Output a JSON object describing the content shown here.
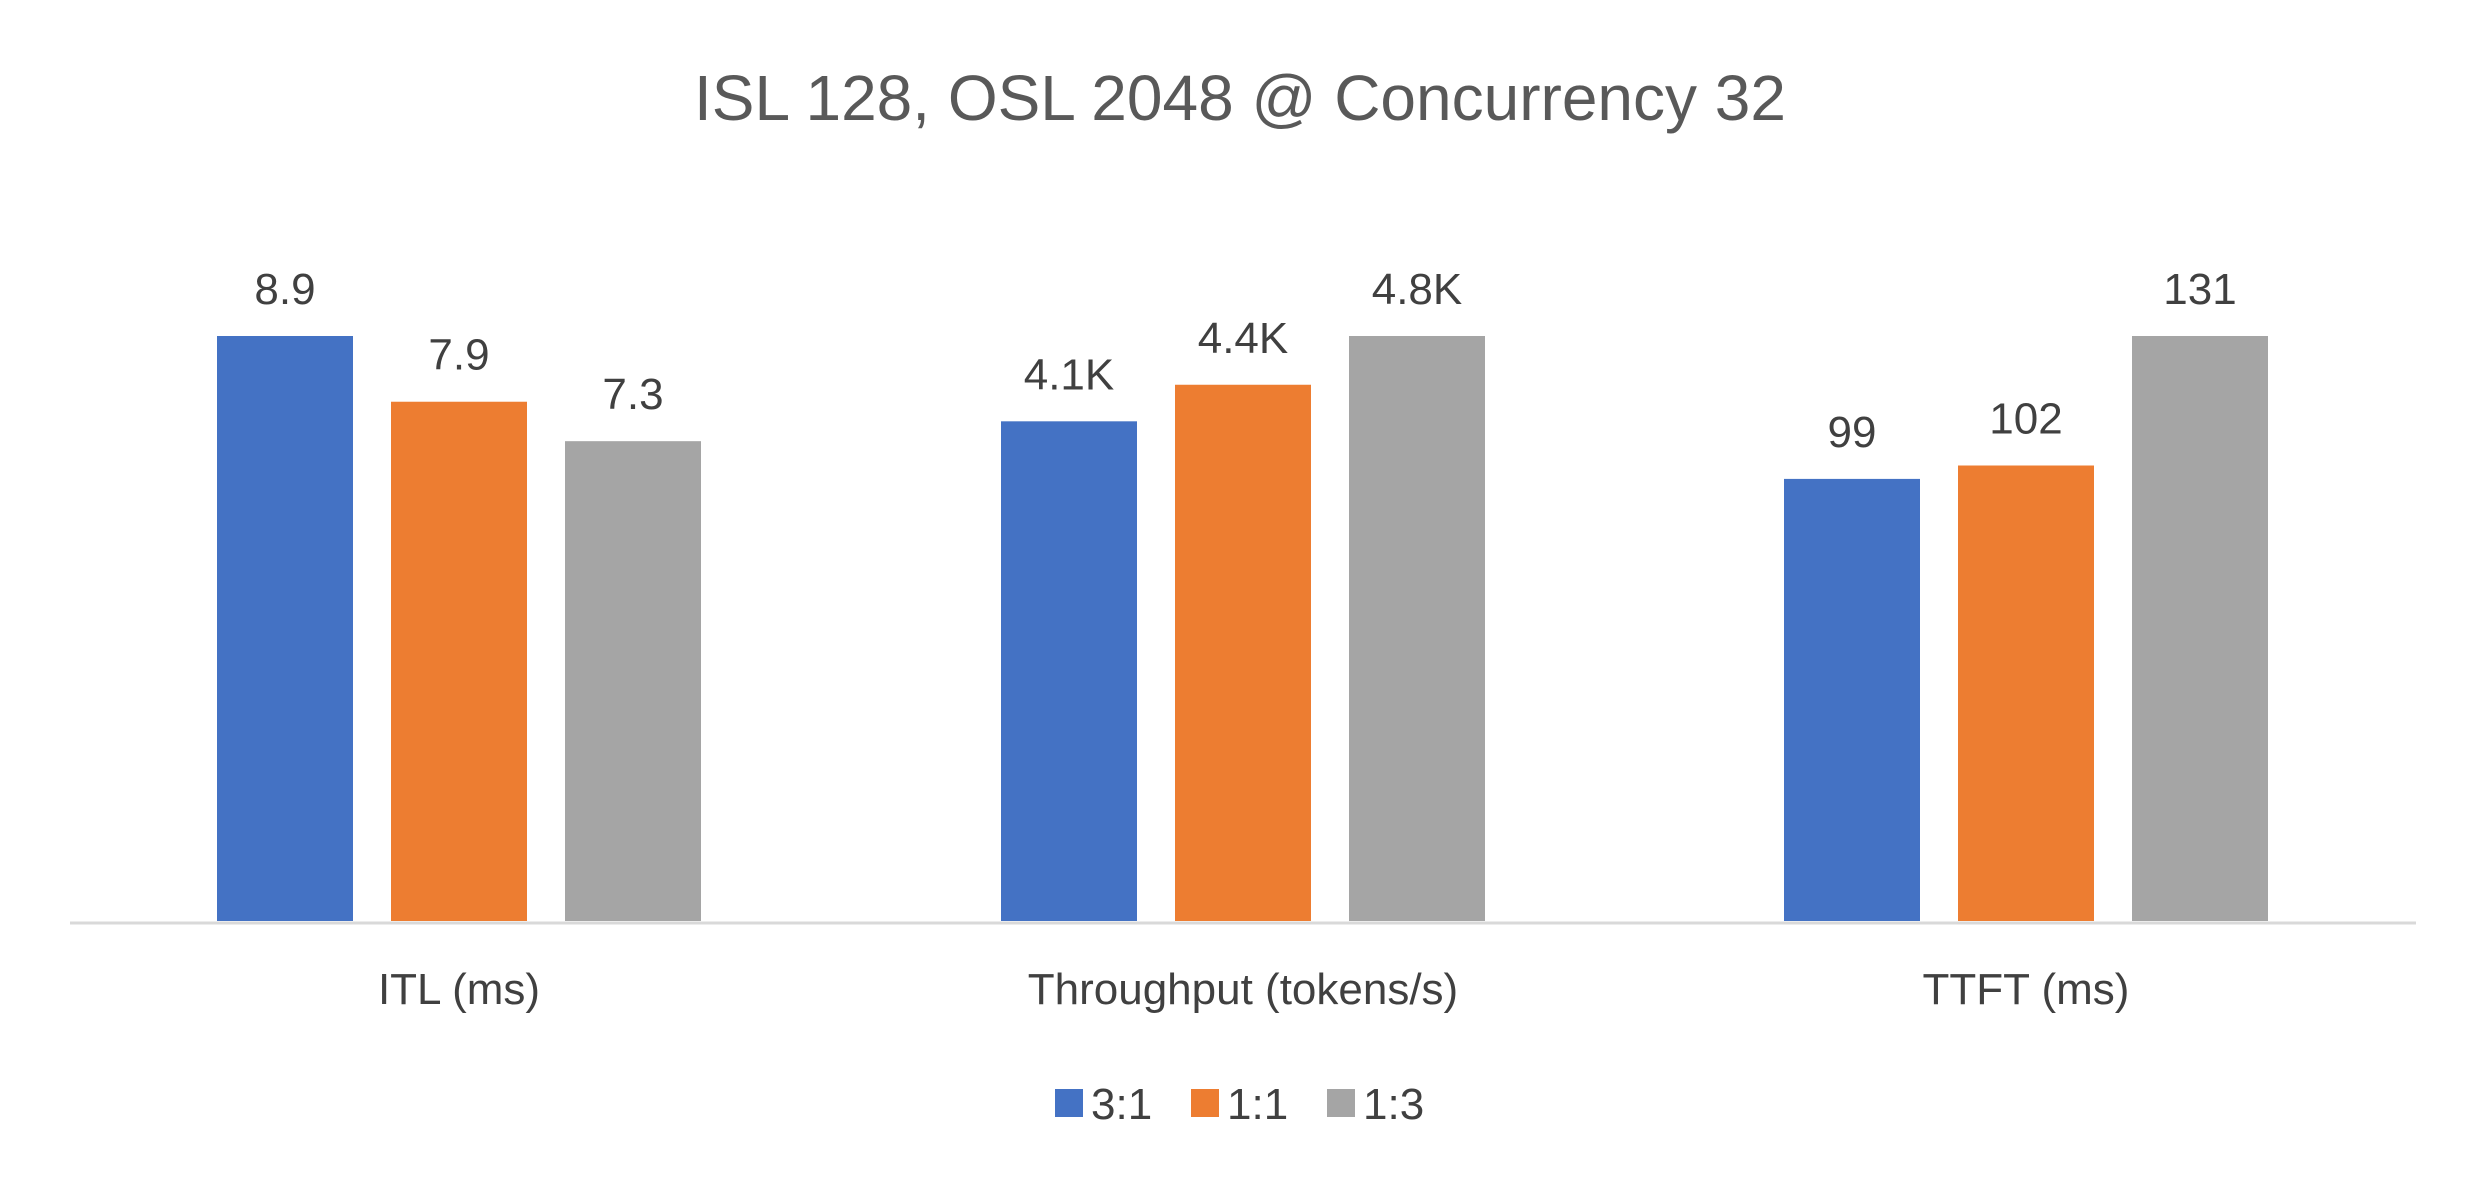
{
  "chart_data": {
    "type": "bar",
    "title": "ISL 128, OSL 2048 @ Concurrency 32",
    "xlabel": "",
    "ylabel": "",
    "grid": false,
    "legend_position": "bottom-center",
    "categories": [
      "ITL (ms)",
      "Throughput (tokens/s)",
      "TTFT (ms)"
    ],
    "series": [
      {
        "name": "3:1",
        "color": "#4472C4",
        "values": [
          8.9,
          4100,
          99
        ],
        "labels": [
          "8.9",
          "4.1K",
          "99"
        ]
      },
      {
        "name": "1:1",
        "color": "#ED7D31",
        "values": [
          7.9,
          4400,
          102
        ],
        "labels": [
          "7.9",
          "4.4K",
          "102"
        ]
      },
      {
        "name": "1:3",
        "color": "#A5A5A5",
        "values": [
          7.3,
          4800,
          131
        ],
        "labels": [
          "7.3",
          "4.8K",
          "131"
        ]
      }
    ]
  }
}
